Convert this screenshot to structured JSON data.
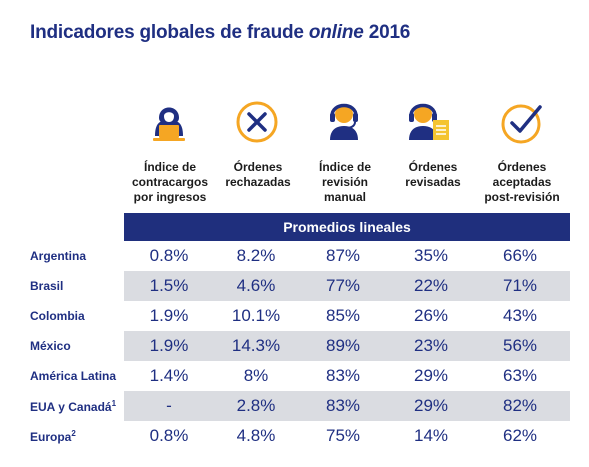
{
  "title": {
    "prefix": "Indicadores globales de fraude ",
    "italic": "online",
    "suffix": " 2016"
  },
  "banner": "Promedios lineales",
  "colors": {
    "navy": "#1f2f82",
    "icon_orange": "#f5a623",
    "icon_yellow": "#f4c430",
    "band": "#dadce1"
  },
  "columns": [
    {
      "icon": "hacker-laptop-icon",
      "label": "Índice de\ncontracargos\npor ingresos"
    },
    {
      "icon": "x-circle-icon",
      "label": "Órdenes\nrechazadas"
    },
    {
      "icon": "headset-agent-icon",
      "label": "Índice de\nrevisión\nmanual"
    },
    {
      "icon": "agent-document-icon",
      "label": "Órdenes\nrevisadas"
    },
    {
      "icon": "check-circle-icon",
      "label": "Órdenes\naceptadas\npost-revisión"
    }
  ],
  "rows": [
    {
      "label": "Argentina",
      "sup": "",
      "values": [
        "0.8%",
        "8.2%",
        "87%",
        "35%",
        "66%"
      ]
    },
    {
      "label": "Brasil",
      "sup": "",
      "values": [
        "1.5%",
        "4.6%",
        "77%",
        "22%",
        "71%"
      ]
    },
    {
      "label": "Colombia",
      "sup": "",
      "values": [
        "1.9%",
        "10.1%",
        "85%",
        "26%",
        "43%"
      ]
    },
    {
      "label": "México",
      "sup": "",
      "values": [
        "1.9%",
        "14.3%",
        "89%",
        "23%",
        "56%"
      ]
    },
    {
      "label": "América Latina",
      "sup": "",
      "values": [
        "1.4%",
        "8%",
        "83%",
        "29%",
        "63%"
      ]
    },
    {
      "label": "EUA y Canadá",
      "sup": "1",
      "values": [
        "-",
        "2.8%",
        "83%",
        "29%",
        "82%"
      ]
    },
    {
      "label": "Europa",
      "sup": "2",
      "values": [
        "0.8%",
        "4.8%",
        "75%",
        "14%",
        "62%"
      ]
    }
  ]
}
